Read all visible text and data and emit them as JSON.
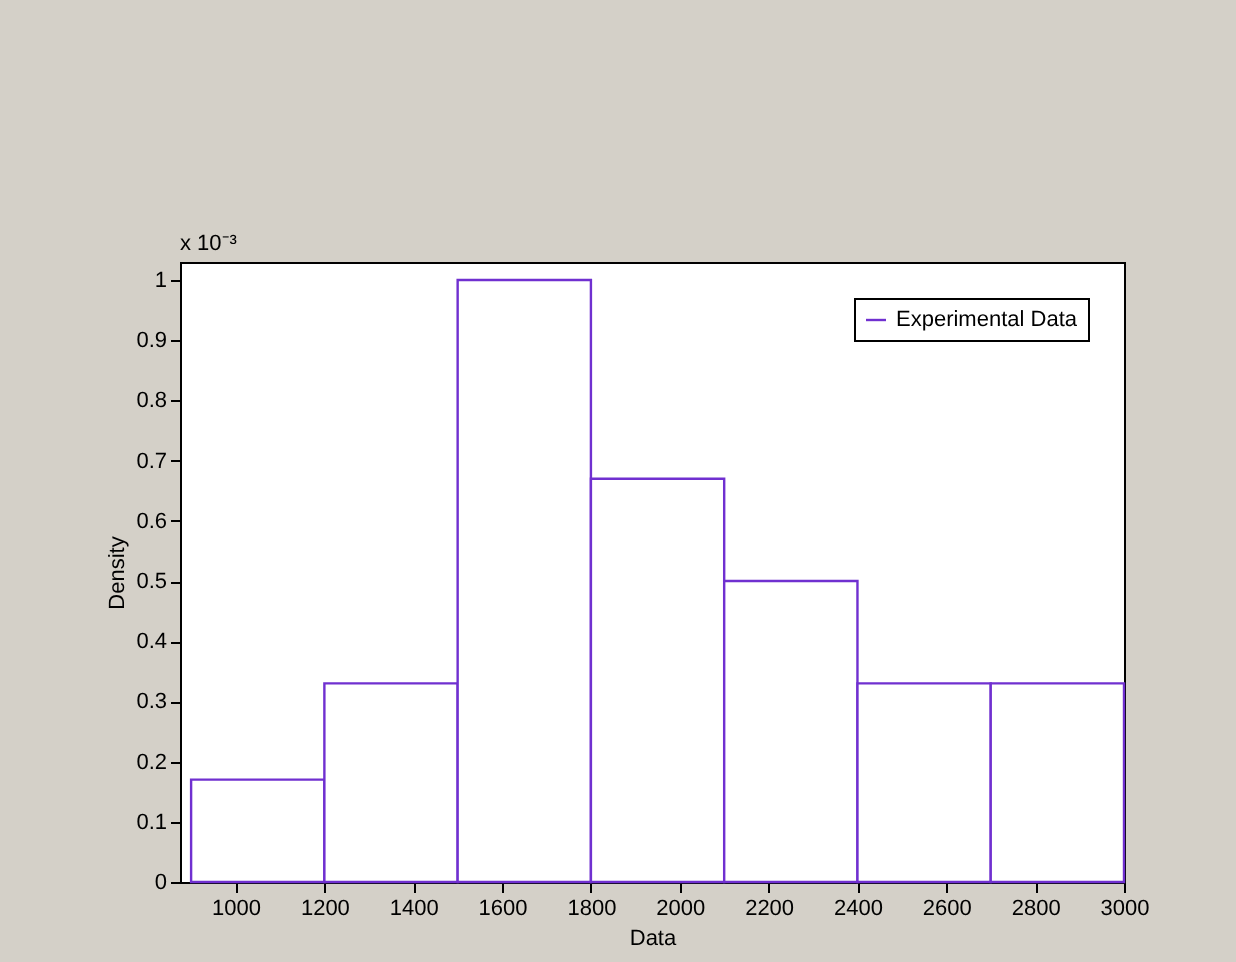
{
  "chart_data": {
    "type": "histogram",
    "xlabel": "Data",
    "ylabel": "Density",
    "bins": [
      900,
      1200,
      1500,
      1800,
      2100,
      2400,
      2700,
      3000
    ],
    "series": [
      {
        "name": "Experimental Data",
        "color": "#7030d0",
        "values": [
          0.17,
          0.33,
          1,
          0.67,
          0.5,
          0.33,
          0.33
        ]
      }
    ],
    "xlim": [
      875,
      3000
    ],
    "xticks": [
      1000,
      1200,
      1400,
      1600,
      1800,
      2000,
      2200,
      2400,
      2600,
      2800,
      3000
    ],
    "ylim": [
      0,
      1.03
    ],
    "yticks": [
      0,
      0.1,
      0.2,
      0.3,
      0.4,
      0.5,
      0.6,
      0.7,
      0.8,
      0.9,
      1
    ],
    "annotations": [
      "x 10⁻³"
    ],
    "legend": "top right",
    "grid": false
  }
}
